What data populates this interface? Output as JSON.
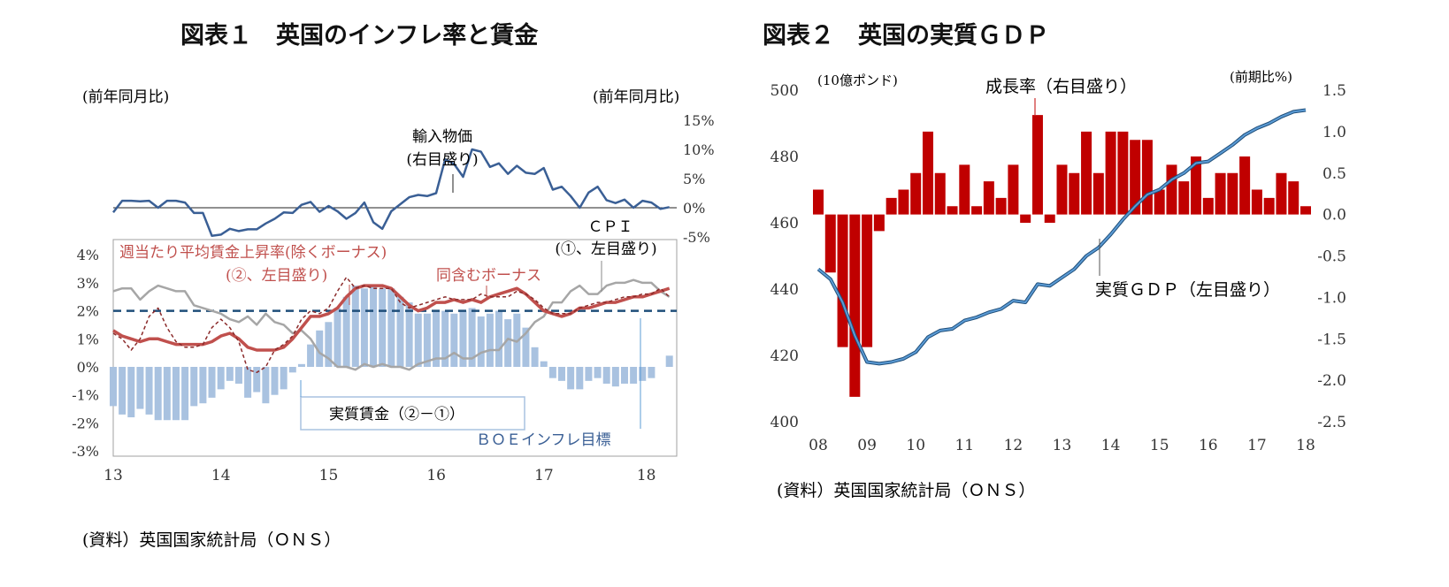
{
  "figure1": {
    "title": "図表１　英国のインフレ率と賃金",
    "unit_left": "(前年同月比)",
    "unit_right": "(前年同月比)",
    "import_label": [
      "輸入物価",
      "(右目盛り)"
    ],
    "cpi_label": [
      "ＣＰＩ",
      "(①、左目盛り)"
    ],
    "wage_label": [
      "週当たり平均賃金上昇率(除くボーナス)",
      "(②、左目盛り)"
    ],
    "bonus_label": "同含むボーナス",
    "real_wage_label": "実質賃金（②－①）",
    "boe_label": "ＢＯＥインフレ目標",
    "source": "(資料）英国国家統計局（ＯＮＳ）"
  },
  "figure2": {
    "title": "図表２　英国の実質ＧＤＰ",
    "unit_left": "(10億ポンド)",
    "unit_right": "(前期比%)",
    "growth_label": "成長率（右目盛り）",
    "gdp_label": "実質ＧＤＰ（左目盛り）",
    "source": "(資料）英国国家統計局（ＯＮＳ）"
  },
  "colors": {
    "import": "#3a5f95",
    "wage": "#c0504d",
    "bonus": "#8b2a2a",
    "cpi": "#a6a6a6",
    "real_bar": "#a9c2e0",
    "boe": "#1f4e79",
    "growth_bar": "#c00000",
    "gdp_line": "#5b9bd5",
    "gdp_line_dark": "#1f4e79",
    "frame": "#a0a0a0"
  },
  "chart_data": [
    {
      "type": "line",
      "x_tick_labels": [
        "13",
        "14",
        "15",
        "16",
        "17",
        "18"
      ],
      "x_start": 2013.0,
      "x_end": 2018.2,
      "x_step": 0.0833,
      "ylim_left": [
        -3,
        4
      ],
      "y_ticks_left": [
        "4%",
        "3%",
        "2%",
        "1%",
        "0%",
        "-1%",
        "-2%",
        "-3%"
      ],
      "ylim_right": [
        -5,
        15
      ],
      "y_ticks_right": [
        "15%",
        "10%",
        "5%",
        "0%",
        "-5%"
      ],
      "boe_target": 2,
      "series": [
        {
          "name": "ＣＰＩ",
          "axis": "left",
          "values": [
            2.7,
            2.8,
            2.8,
            2.4,
            2.7,
            2.9,
            2.8,
            2.7,
            2.7,
            2.2,
            2.1,
            2.0,
            1.9,
            1.7,
            1.6,
            1.8,
            1.5,
            1.9,
            1.6,
            1.5,
            1.2,
            1.3,
            1.0,
            0.5,
            0.3,
            0.0,
            0.0,
            -0.1,
            0.1,
            0.0,
            0.1,
            0.0,
            0.0,
            -0.1,
            0.1,
            0.2,
            0.3,
            0.3,
            0.5,
            0.3,
            0.3,
            0.5,
            0.6,
            0.6,
            1.0,
            0.9,
            1.2,
            1.6,
            1.8,
            2.3,
            2.3,
            2.7,
            2.9,
            2.6,
            2.6,
            2.9,
            3.0,
            3.0,
            3.1,
            3.0,
            3.0,
            2.7,
            2.5
          ]
        },
        {
          "name": "週当たり平均賃金上昇率(除くボーナス)",
          "axis": "left",
          "values": [
            1.3,
            1.1,
            1.0,
            0.9,
            1.0,
            1.0,
            0.9,
            0.8,
            0.8,
            0.8,
            0.8,
            0.9,
            1.1,
            1.2,
            1.0,
            0.7,
            0.6,
            0.6,
            0.6,
            0.7,
            1.0,
            1.4,
            1.8,
            1.8,
            1.9,
            2.1,
            2.5,
            2.8,
            2.9,
            2.9,
            2.9,
            2.8,
            2.5,
            2.2,
            2.0,
            2.1,
            2.3,
            2.3,
            2.4,
            2.3,
            2.4,
            2.3,
            2.5,
            2.6,
            2.7,
            2.8,
            2.6,
            2.3,
            2.0,
            1.9,
            1.8,
            1.9,
            2.1,
            2.1,
            2.2,
            2.3,
            2.3,
            2.4,
            2.5,
            2.5,
            2.6,
            2.7,
            2.8
          ]
        },
        {
          "name": "同含むボーナス",
          "axis": "left",
          "values": [
            1.2,
            1.0,
            0.6,
            1.0,
            1.8,
            2.1,
            1.4,
            0.9,
            0.7,
            0.7,
            0.8,
            1.4,
            1.7,
            1.4,
            0.9,
            -0.1,
            -0.2,
            0.0,
            0.6,
            0.8,
            1.1,
            1.7,
            2.0,
            1.9,
            2.1,
            2.7,
            3.2,
            2.8,
            2.9,
            2.8,
            2.8,
            2.8,
            2.3,
            2.1,
            2.2,
            2.3,
            2.4,
            2.5,
            2.4,
            2.4,
            2.4,
            2.6,
            2.5,
            2.5,
            2.5,
            2.7,
            2.6,
            2.4,
            2.1,
            1.9,
            1.9,
            1.9,
            2.1,
            2.2,
            2.3,
            2.3,
            2.4,
            2.5,
            2.5,
            2.6,
            2.6,
            2.8,
            2.5
          ]
        },
        {
          "name": "実質賃金（②－①）",
          "axis": "left",
          "type": "bar",
          "values": [
            -1.4,
            -1.7,
            -1.8,
            -1.5,
            -1.7,
            -1.9,
            -1.9,
            -1.9,
            -1.9,
            -1.4,
            -1.3,
            -1.1,
            -0.8,
            -0.5,
            -0.6,
            -1.1,
            -0.9,
            -1.3,
            -1.0,
            -0.8,
            -0.2,
            0.1,
            0.8,
            1.3,
            1.6,
            2.1,
            2.5,
            2.9,
            2.8,
            2.9,
            2.8,
            2.8,
            2.5,
            2.3,
            1.9,
            1.9,
            2.0,
            2.0,
            1.9,
            2.0,
            2.1,
            1.8,
            1.9,
            2.0,
            1.7,
            1.9,
            1.4,
            0.7,
            0.2,
            -0.4,
            -0.5,
            -0.8,
            -0.8,
            -0.5,
            -0.4,
            -0.6,
            -0.7,
            -0.6,
            -0.6,
            -0.5,
            -0.4,
            0.0,
            0.4
          ]
        },
        {
          "name": "輸入物価",
          "axis": "right",
          "values": [
            -0.8,
            1.2,
            1.2,
            1.1,
            1.2,
            0.0,
            1.2,
            1.2,
            0.9,
            -0.9,
            -0.9,
            -4.8,
            -4.6,
            -3.6,
            -4.0,
            -3.7,
            -3.7,
            -2.7,
            -1.9,
            -0.8,
            -0.9,
            0.5,
            1.0,
            -0.7,
            0.3,
            -0.6,
            -1.9,
            -0.9,
            0.9,
            -2.5,
            -3.6,
            -0.6,
            0.6,
            1.8,
            2.2,
            2.0,
            2.5,
            8.3,
            7.5,
            5.3,
            10.0,
            9.6,
            7.0,
            7.6,
            5.8,
            7.2,
            6.0,
            5.8,
            6.8,
            3.1,
            3.6,
            2.0,
            0.0,
            2.6,
            3.6,
            1.3,
            0.8,
            1.4,
            0.0,
            1.2,
            0.9,
            -0.2,
            0.1
          ]
        }
      ]
    },
    {
      "type": "bar",
      "x_tick_labels": [
        "08",
        "09",
        "10",
        "11",
        "12",
        "13",
        "14",
        "15",
        "16",
        "17",
        "18"
      ],
      "x_start": 2008.0,
      "x_step": 0.25,
      "ylim_left": [
        400,
        500
      ],
      "y_ticks_left": [
        "500",
        "480",
        "460",
        "440",
        "420",
        "400"
      ],
      "ylim_right": [
        -2.5,
        1.5
      ],
      "y_ticks_right": [
        "1.5",
        "1.0",
        "0.5",
        "0.0",
        "-0.5",
        "-1.0",
        "-1.5",
        "-2.0",
        "-2.5"
      ],
      "series": [
        {
          "name": "成長率（右目盛り）",
          "axis": "right",
          "type": "bar",
          "values": [
            0.3,
            -0.7,
            -1.6,
            -2.2,
            -1.6,
            -0.2,
            0.2,
            0.3,
            0.5,
            1.0,
            0.5,
            0.1,
            0.6,
            0.1,
            0.4,
            0.2,
            0.6,
            -0.1,
            1.2,
            -0.1,
            0.6,
            0.5,
            1.0,
            0.5,
            1.0,
            1.0,
            0.9,
            0.9,
            0.3,
            0.6,
            0.4,
            0.7,
            0.2,
            0.5,
            0.5,
            0.7,
            0.3,
            0.2,
            0.5,
            0.4,
            0.1
          ]
        },
        {
          "name": "実質ＧＤＰ（左目盛り）",
          "axis": "left",
          "type": "line",
          "values": [
            446.0,
            443.0,
            436.0,
            426.0,
            418.0,
            417.5,
            418.0,
            419.0,
            421.0,
            425.5,
            427.5,
            428.0,
            430.5,
            431.5,
            433.0,
            434.0,
            436.5,
            436.0,
            441.5,
            441.0,
            443.5,
            446.0,
            450.0,
            452.5,
            456.5,
            461.0,
            465.0,
            468.5,
            470.0,
            473.0,
            475.0,
            478.0,
            478.5,
            481.0,
            483.5,
            486.5,
            488.5,
            490.0,
            492.0,
            493.5,
            494.0
          ]
        }
      ]
    }
  ]
}
